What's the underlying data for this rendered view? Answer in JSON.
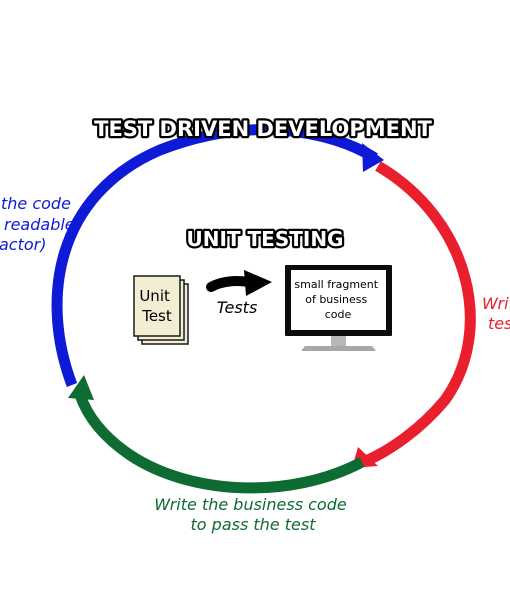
{
  "title": "TEST DRIVEN DEVELOPMENT",
  "subtitle": "UNIT TESTING",
  "phases": {
    "refactor": {
      "lines": [
        "the code",
        "readable",
        "actor)"
      ],
      "color": "#0e1ad6"
    },
    "write_test": {
      "lines": [
        "Writ",
        "tes"
      ],
      "color": "#ea1f2d"
    },
    "pass": {
      "lines": [
        "Write the business code",
        "to pass the test"
      ],
      "color": "#0e6b31"
    }
  },
  "unit_test_card": {
    "lines": [
      "Unit",
      "Test"
    ]
  },
  "arrow_label": "Tests",
  "monitor_text": {
    "lines": [
      "small fragment",
      "of business",
      "code"
    ]
  },
  "colors": {
    "blue": "#0e1ad6",
    "red": "#ea1f2d",
    "green": "#0e6b31",
    "card": "#f1eed3"
  }
}
